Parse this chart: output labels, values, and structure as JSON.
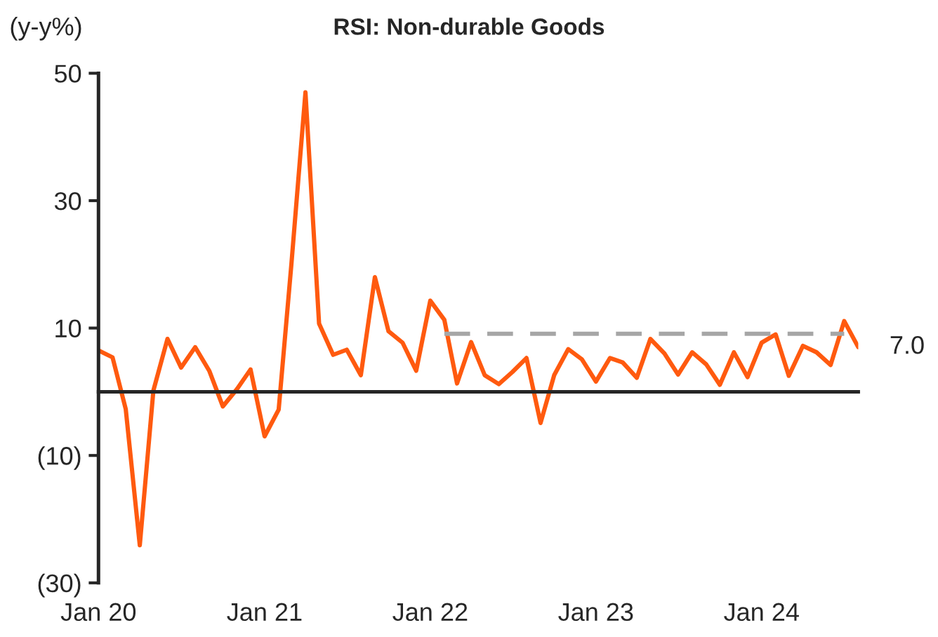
{
  "chart_data": {
    "type": "line",
    "title": "RSI: Non-durable Goods",
    "ylabel": "(y-y%)",
    "x": [
      "2020-01",
      "2020-02",
      "2020-03",
      "2020-04",
      "2020-05",
      "2020-06",
      "2020-07",
      "2020-08",
      "2020-09",
      "2020-10",
      "2020-11",
      "2020-12",
      "2021-01",
      "2021-02",
      "2021-03",
      "2021-04",
      "2021-05",
      "2021-06",
      "2021-07",
      "2021-08",
      "2021-09",
      "2021-10",
      "2021-11",
      "2021-12",
      "2022-01",
      "2022-02",
      "2022-03",
      "2022-04",
      "2022-05",
      "2022-06",
      "2022-07",
      "2022-08",
      "2022-09",
      "2022-10",
      "2022-11",
      "2022-12",
      "2023-01",
      "2023-02",
      "2023-03",
      "2023-04",
      "2023-05",
      "2023-06",
      "2023-07",
      "2023-08",
      "2023-09",
      "2023-10",
      "2023-11",
      "2023-12",
      "2024-01",
      "2024-02",
      "2024-03",
      "2024-04",
      "2024-05",
      "2024-06",
      "2024-07",
      "2024-08"
    ],
    "series": [
      {
        "color": "#ff5a0f",
        "line_style": "solid",
        "values": [
          6.5,
          5.4,
          -2.7,
          -24.1,
          0.2,
          8.3,
          3.8,
          7.0,
          3.3,
          -2.3,
          0.4,
          3.5,
          -7.0,
          -2.8,
          20.0,
          47.0,
          10.7,
          5.8,
          6.6,
          2.6,
          18.0,
          9.5,
          7.7,
          3.3,
          14.3,
          11.3,
          1.3,
          7.8,
          2.6,
          1.2,
          3.1,
          5.3,
          -4.9,
          2.6,
          6.7,
          5.1,
          1.6,
          5.3,
          4.6,
          2.2,
          8.3,
          6.0,
          2.7,
          6.2,
          4.3,
          1.1,
          6.2,
          2.3,
          7.7,
          9.0,
          2.5,
          7.2,
          6.2,
          4.2,
          11.1,
          7.0
        ]
      },
      {
        "color": "#a6a6a6",
        "line_style": "dashed",
        "x": [
          "2022-02",
          "2024-07"
        ],
        "values": [
          9.1,
          9.1
        ]
      }
    ],
    "annotations": [
      {
        "text": "7.0",
        "x": "2024-08",
        "y": 7.0
      }
    ],
    "xlim": [
      "2020-01",
      "2024-08"
    ],
    "xticks": [
      {
        "value": "2020-01",
        "label": "Jan 20"
      },
      {
        "value": "2021-01",
        "label": "Jan 21"
      },
      {
        "value": "2022-01",
        "label": "Jan 22"
      },
      {
        "value": "2023-01",
        "label": "Jan 23"
      },
      {
        "value": "2024-01",
        "label": "Jan 24"
      }
    ],
    "ylim": [
      -30,
      50
    ],
    "yticks": [
      {
        "value": -30,
        "label": "(30)"
      },
      {
        "value": -10,
        "label": "(10)"
      },
      10,
      30,
      50
    ],
    "grid": false,
    "legend": false,
    "marker": "none"
  }
}
